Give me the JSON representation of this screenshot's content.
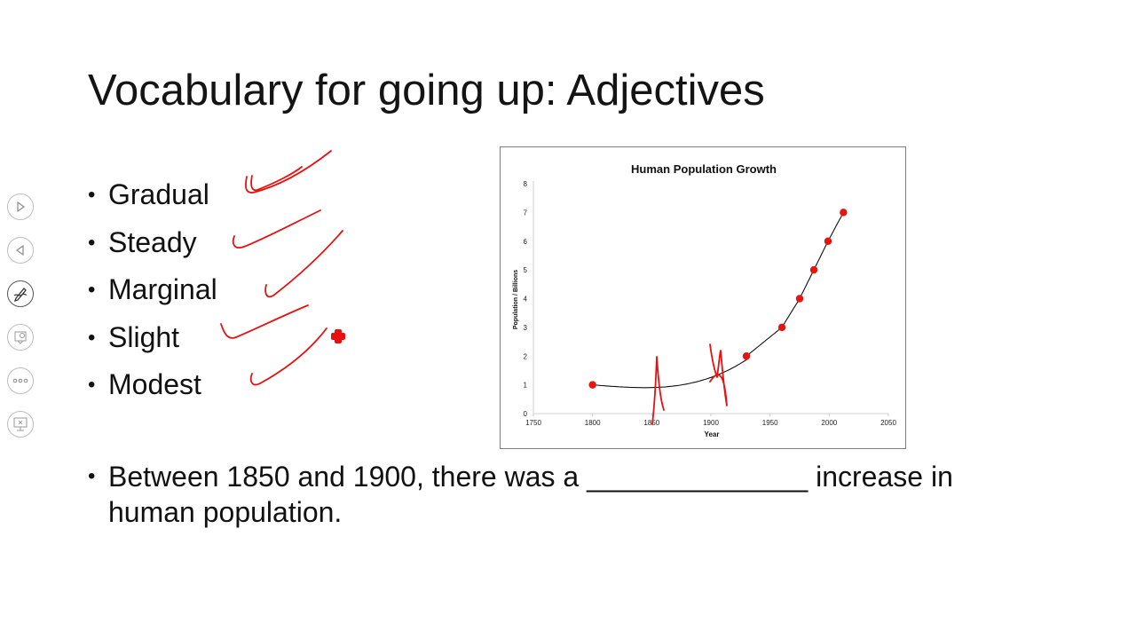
{
  "slide": {
    "title": "Vocabulary for going up: Adjectives",
    "bullet_glyph": "•",
    "bullets": [
      "Gradual",
      "Steady",
      "Marginal",
      "Slight",
      "Modest"
    ],
    "sentence": "Between 1850 and 1900, there was a ______________ increase in human population."
  },
  "toolbar": {
    "items": [
      {
        "name": "next-icon"
      },
      {
        "name": "previous-icon"
      },
      {
        "name": "pen-icon"
      },
      {
        "name": "see-all-slides-icon"
      },
      {
        "name": "more-options-icon"
      },
      {
        "name": "presenter-view-icon"
      }
    ]
  },
  "ink_color": "#e8110f",
  "chart_data": {
    "type": "scatter",
    "title": "Human Population Growth",
    "xlabel": "Year",
    "ylabel": "Population / Billions",
    "xlim": [
      1750,
      2050
    ],
    "ylim": [
      0,
      8
    ],
    "xticks": [
      1750,
      1800,
      1850,
      1900,
      1950,
      2000,
      2050
    ],
    "yticks": [
      0,
      1,
      2,
      3,
      4,
      5,
      6,
      7,
      8
    ],
    "point_color": "#e8140e",
    "trendline": true,
    "grid": false,
    "points": [
      {
        "x": 1800,
        "y": 1
      },
      {
        "x": 1930,
        "y": 2
      },
      {
        "x": 1960,
        "y": 3
      },
      {
        "x": 1975,
        "y": 4
      },
      {
        "x": 1987,
        "y": 5
      },
      {
        "x": 1999,
        "y": 6
      },
      {
        "x": 2012,
        "y": 7
      }
    ]
  }
}
